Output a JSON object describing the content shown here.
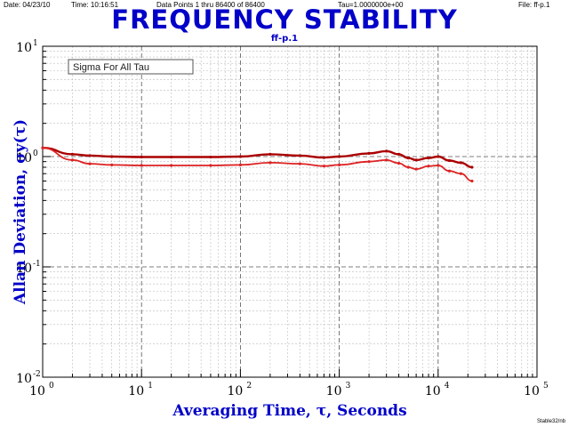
{
  "header": {
    "date": "Date: 04/23/10",
    "time": "Time: 10:16:51",
    "data_points": "Data Points 1 thru 86400 of 86400",
    "tau": "Tau=1.0000000e+00",
    "file": "File: ff-p.1"
  },
  "footer": "Stable32/nb",
  "chart_data": {
    "type": "line",
    "title": "FREQUENCY STABILITY",
    "subtitle": "ff-p.1",
    "xlabel": "Averaging Time, τ, Seconds",
    "ylabel": "Allan Deviation, σy(τ)",
    "xscale": "log",
    "yscale": "log",
    "xlim": [
      1,
      100000
    ],
    "ylim": [
      0.01,
      10
    ],
    "grid": true,
    "legend_text": "Sigma For All Tau",
    "legend_placement": "top-left",
    "x_ticks": [
      {
        "base": "10",
        "exp": "0"
      },
      {
        "base": "10",
        "exp": "1"
      },
      {
        "base": "10",
        "exp": "2"
      },
      {
        "base": "10",
        "exp": "3"
      },
      {
        "base": "10",
        "exp": "4"
      },
      {
        "base": "10",
        "exp": "5"
      }
    ],
    "y_ticks": [
      {
        "base": "10",
        "exp": "-2"
      },
      {
        "base": "10",
        "exp": "-1"
      },
      {
        "base": "10",
        "exp": "0"
      },
      {
        "base": "10",
        "exp": "1"
      }
    ],
    "series": [
      {
        "color": "#aa0000",
        "x": [
          1,
          2,
          3,
          5,
          10,
          20,
          50,
          100,
          200,
          400,
          700,
          1000,
          2000,
          3000,
          4000,
          5000,
          6000,
          8000,
          10000,
          13000,
          17000,
          22000
        ],
        "y": [
          1.2,
          1.05,
          1.02,
          1.0,
          0.99,
          0.99,
          0.99,
          1.0,
          1.05,
          1.02,
          0.98,
          1.0,
          1.07,
          1.12,
          1.05,
          0.97,
          0.93,
          0.97,
          1.0,
          0.92,
          0.88,
          0.8
        ]
      },
      {
        "color": "#dd2222",
        "x": [
          1,
          2,
          3,
          5,
          10,
          20,
          50,
          100,
          200,
          400,
          700,
          1000,
          2000,
          3000,
          4000,
          5000,
          6000,
          8000,
          10000,
          13000,
          17000,
          22000
        ],
        "y": [
          1.2,
          0.93,
          0.86,
          0.84,
          0.83,
          0.83,
          0.83,
          0.84,
          0.88,
          0.86,
          0.82,
          0.84,
          0.9,
          0.93,
          0.87,
          0.8,
          0.77,
          0.82,
          0.83,
          0.74,
          0.7,
          0.6
        ]
      }
    ]
  }
}
